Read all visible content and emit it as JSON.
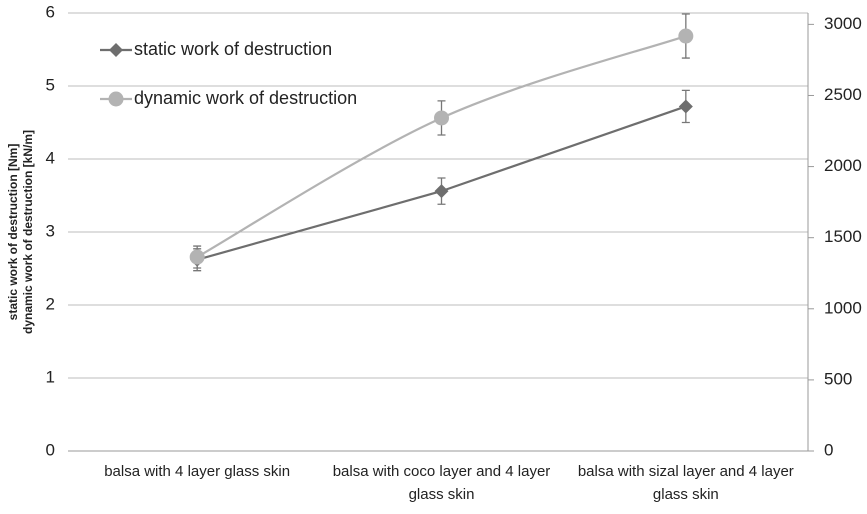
{
  "chart_data": {
    "type": "line",
    "ylabel": [
      "static work of destruction [Nm]",
      "dynamic work of destruction [kN/m]"
    ],
    "categories": [
      "balsa with 4 layer glass skin",
      "balsa with coco layer and 4 layer glass skin",
      "balsa with sizal layer and 4 layer glass skin"
    ],
    "series": [
      {
        "name": "static work of destruction",
        "color": "#6e6e6e",
        "marker": "diamond",
        "smooth": false,
        "axis": "y",
        "values": [
          2.62,
          3.56,
          4.72
        ],
        "errors": [
          0.15,
          0.18,
          0.22
        ]
      },
      {
        "name": "dynamic work of destruction",
        "color": "#b3b3b3",
        "marker": "circle",
        "smooth": true,
        "axis": "y2",
        "values": [
          1364,
          2342,
          2918
        ],
        "errors": [
          77,
          120,
          155
        ]
      }
    ],
    "ylim": [
      0,
      6
    ],
    "yticks": [
      0,
      1,
      2,
      3,
      4,
      5,
      6
    ],
    "y2lim": [
      0,
      3080
    ],
    "y2ticks": [
      0,
      500,
      1000,
      1500,
      2000,
      2500,
      3000
    ],
    "grid": true,
    "legend": "upper left"
  }
}
